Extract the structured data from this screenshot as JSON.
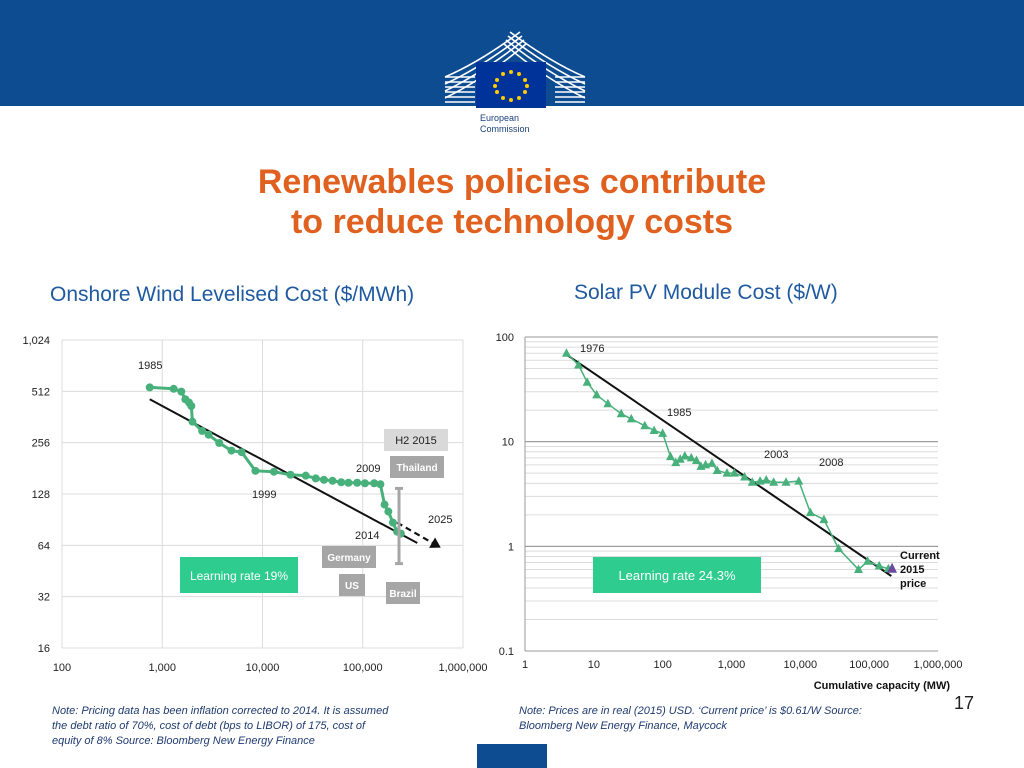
{
  "logo": {
    "line1": "European",
    "line2": "Commission"
  },
  "slide": {
    "title_line1": "Renewables policies contribute",
    "title_line2": "to reduce technology costs",
    "page_number": "17"
  },
  "colors": {
    "header": "#0e4c92",
    "title": "#e0611f",
    "series": "#48b07a",
    "trend": "#111111",
    "label_box": "#a6a6a6",
    "highlight": "#2ecc8f",
    "current_price": "#6b4aa0"
  },
  "chart_data": [
    {
      "type": "line",
      "title": "Onshore Wind Levelised Cost ($/MWh)",
      "xscale": "log",
      "yscale": "log2",
      "xlim": [
        100,
        1000000
      ],
      "ylim": [
        16,
        1024
      ],
      "xticks": [
        "100",
        "1,000",
        "10,000",
        "100,000",
        "1,000,000"
      ],
      "yticks": [
        "1,024",
        "512",
        "256",
        "128",
        "64",
        "32",
        "16"
      ],
      "series": [
        {
          "name": "Onshore wind LCOE",
          "x": [
            750,
            1300,
            1550,
            1700,
            1850,
            1950,
            2000,
            2500,
            2900,
            3700,
            4900,
            6200,
            8500,
            13000,
            19000,
            27000,
            34000,
            41000,
            50000,
            61000,
            72000,
            88000,
            105000,
            130000,
            150000,
            165000,
            180000,
            200000,
            220000,
            240000
          ],
          "y": [
            540,
            530,
            510,
            460,
            440,
            420,
            340,
            300,
            285,
            255,
            230,
            225,
            175,
            173,
            166,
            164,
            158,
            155,
            153,
            150,
            149,
            149,
            148,
            148,
            146,
            111,
            101,
            87,
            77,
            75
          ]
        }
      ],
      "trendline": {
        "x": [
          750,
          350000
        ],
        "y": [
          460,
          66
        ]
      },
      "projection": {
        "x": [
          220000,
          600000
        ],
        "y": [
          87,
          62
        ]
      },
      "range_bar": {
        "x": 230000,
        "ymin": 50,
        "ymax": 138
      },
      "annotations": [
        "1985",
        "1999",
        "2009",
        "2014",
        "2025"
      ],
      "country_labels": [
        "H2 2015",
        "Thailand",
        "Germany",
        "US",
        "Brazil"
      ],
      "learning_rate": "Learning rate 19%"
    },
    {
      "type": "line",
      "title": "Solar PV Module Cost ($/W)",
      "xscale": "log",
      "yscale": "log",
      "xlim": [
        1,
        1000000
      ],
      "ylim": [
        0.1,
        100
      ],
      "xticks": [
        "1",
        "10",
        "100",
        "1,000",
        "10,000",
        "100,000",
        "1,000,000"
      ],
      "yticks": [
        "100",
        "10",
        "1",
        "0.1"
      ],
      "xlabel": "Cumulative capacity (MW)",
      "series": [
        {
          "name": "PV module price",
          "x": [
            4,
            6,
            8,
            11,
            16,
            25,
            35,
            55,
            75,
            100,
            130,
            155,
            180,
            210,
            260,
            310,
            360,
            420,
            520,
            620,
            860,
            1100,
            1550,
            2000,
            2600,
            3200,
            4100,
            6200,
            9500,
            14000,
            22000,
            36000,
            70000,
            95000,
            140000,
            190000
          ],
          "y": [
            70,
            54,
            37,
            28,
            23,
            18.5,
            16.5,
            14.2,
            12.8,
            12.0,
            7.2,
            6.3,
            6.8,
            7.3,
            7.0,
            6.6,
            5.8,
            6.0,
            6.2,
            5.3,
            5.0,
            5.0,
            4.6,
            4.1,
            4.2,
            4.3,
            4.1,
            4.1,
            4.2,
            2.1,
            1.8,
            0.95,
            0.6,
            0.72,
            0.65,
            0.61
          ]
        }
      ],
      "trendline": {
        "x": [
          4,
          210000
        ],
        "y": [
          68,
          0.52
        ]
      },
      "current_price": {
        "x": 215000,
        "y": 0.61,
        "label_lines": [
          "Current",
          "2015",
          "price"
        ]
      },
      "annotations": [
        "1976",
        "1985",
        "2003",
        "2008"
      ],
      "learning_rate": "Learning rate 24.3%"
    }
  ],
  "notes": {
    "wind": [
      "Note: Pricing data has been inflation corrected to 2014. It is assumed",
      "the debt ratio of 70%, cost of debt (bps to LIBOR) of 175, cost of",
      "equity of 8%  Source: Bloomberg New Energy Finance"
    ],
    "solar": [
      "Note: Prices are in real (2015) USD. ‘Current price’ is $0.61/W  Source:",
      "Bloomberg New Energy Finance, Maycock"
    ]
  }
}
